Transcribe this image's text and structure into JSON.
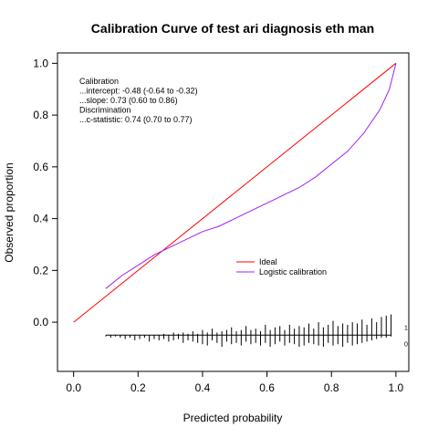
{
  "chart_data": {
    "type": "line",
    "title": "Calibration Curve of test ari diagnosis eth man",
    "xlabel": "Predicted probability",
    "ylabel": "Observed proportion",
    "xlim": [
      -0.05,
      1.04
    ],
    "ylim": [
      -0.19,
      1.04
    ],
    "xticks": [
      "0.0",
      "0.2",
      "0.4",
      "0.6",
      "0.8",
      "1.0"
    ],
    "xtick_values": [
      0.0,
      0.2,
      0.4,
      0.6,
      0.8,
      1.0
    ],
    "yticks": [
      "0.0",
      "0.2",
      "0.4",
      "0.6",
      "0.8",
      "1.0"
    ],
    "ytick_values": [
      0.0,
      0.2,
      0.4,
      0.6,
      0.8,
      1.0
    ],
    "grid": false,
    "legend_position": "center-right",
    "stats_lines": [
      "Calibration",
      "...intercept: -0.48 (-0.64 to -0.32)",
      "...slope: 0.73 (0.60 to 0.86)",
      "Discrimination",
      "...c-statistic: 0.74 (0.70 to 0.77)"
    ],
    "series": [
      {
        "name": "Ideal",
        "color": "#ff0000",
        "x": [
          0.0,
          1.0
        ],
        "y": [
          0.0,
          1.0
        ]
      },
      {
        "name": "Logistic calibration",
        "color": "#a020f0",
        "x": [
          0.1,
          0.15,
          0.2,
          0.25,
          0.3,
          0.35,
          0.4,
          0.45,
          0.5,
          0.55,
          0.6,
          0.65,
          0.7,
          0.75,
          0.8,
          0.85,
          0.9,
          0.95,
          0.98,
          1.0
        ],
        "y": [
          0.13,
          0.18,
          0.22,
          0.26,
          0.29,
          0.32,
          0.35,
          0.37,
          0.4,
          0.43,
          0.46,
          0.49,
          0.52,
          0.56,
          0.61,
          0.66,
          0.73,
          0.82,
          0.9,
          1.0
        ]
      }
    ],
    "rug": {
      "labels": [
        "1",
        "0"
      ],
      "x": [
        0.1,
        0.115,
        0.13,
        0.145,
        0.16,
        0.175,
        0.19,
        0.205,
        0.22,
        0.235,
        0.25,
        0.265,
        0.28,
        0.295,
        0.31,
        0.325,
        0.34,
        0.355,
        0.37,
        0.385,
        0.4,
        0.415,
        0.43,
        0.445,
        0.46,
        0.475,
        0.49,
        0.505,
        0.52,
        0.535,
        0.55,
        0.565,
        0.58,
        0.595,
        0.61,
        0.625,
        0.64,
        0.655,
        0.67,
        0.685,
        0.7,
        0.715,
        0.73,
        0.745,
        0.76,
        0.775,
        0.79,
        0.805,
        0.82,
        0.835,
        0.85,
        0.865,
        0.88,
        0.895,
        0.91,
        0.925,
        0.94,
        0.955,
        0.97,
        0.985
      ],
      "up": [
        0.0,
        0.0,
        0.0,
        0.0,
        0.0,
        0.0,
        0.0,
        0.0,
        0.0,
        0.0,
        0.0,
        0.0,
        0.005,
        0.0,
        0.01,
        0.005,
        0.01,
        0.005,
        0.015,
        0.005,
        0.02,
        0.01,
        0.025,
        0.01,
        0.015,
        0.02,
        0.03,
        0.015,
        0.02,
        0.035,
        0.02,
        0.025,
        0.015,
        0.04,
        0.02,
        0.03,
        0.035,
        0.02,
        0.04,
        0.025,
        0.035,
        0.03,
        0.045,
        0.025,
        0.05,
        0.03,
        0.04,
        0.055,
        0.035,
        0.045,
        0.04,
        0.05,
        0.045,
        0.06,
        0.04,
        0.065,
        0.05,
        0.07,
        0.075,
        0.08
      ],
      "down": [
        0.005,
        0.01,
        0.005,
        0.01,
        0.015,
        0.01,
        0.02,
        0.015,
        0.01,
        0.025,
        0.015,
        0.02,
        0.015,
        0.025,
        0.02,
        0.015,
        0.03,
        0.02,
        0.025,
        0.03,
        0.035,
        0.04,
        0.02,
        0.03,
        0.045,
        0.025,
        0.035,
        0.03,
        0.04,
        0.025,
        0.035,
        0.03,
        0.04,
        0.03,
        0.045,
        0.035,
        0.025,
        0.04,
        0.03,
        0.035,
        0.045,
        0.04,
        0.03,
        0.035,
        0.04,
        0.045,
        0.03,
        0.04,
        0.035,
        0.045,
        0.03,
        0.04,
        0.035,
        0.03,
        0.025,
        0.02,
        0.015,
        0.01,
        0.01,
        0.005
      ]
    }
  }
}
